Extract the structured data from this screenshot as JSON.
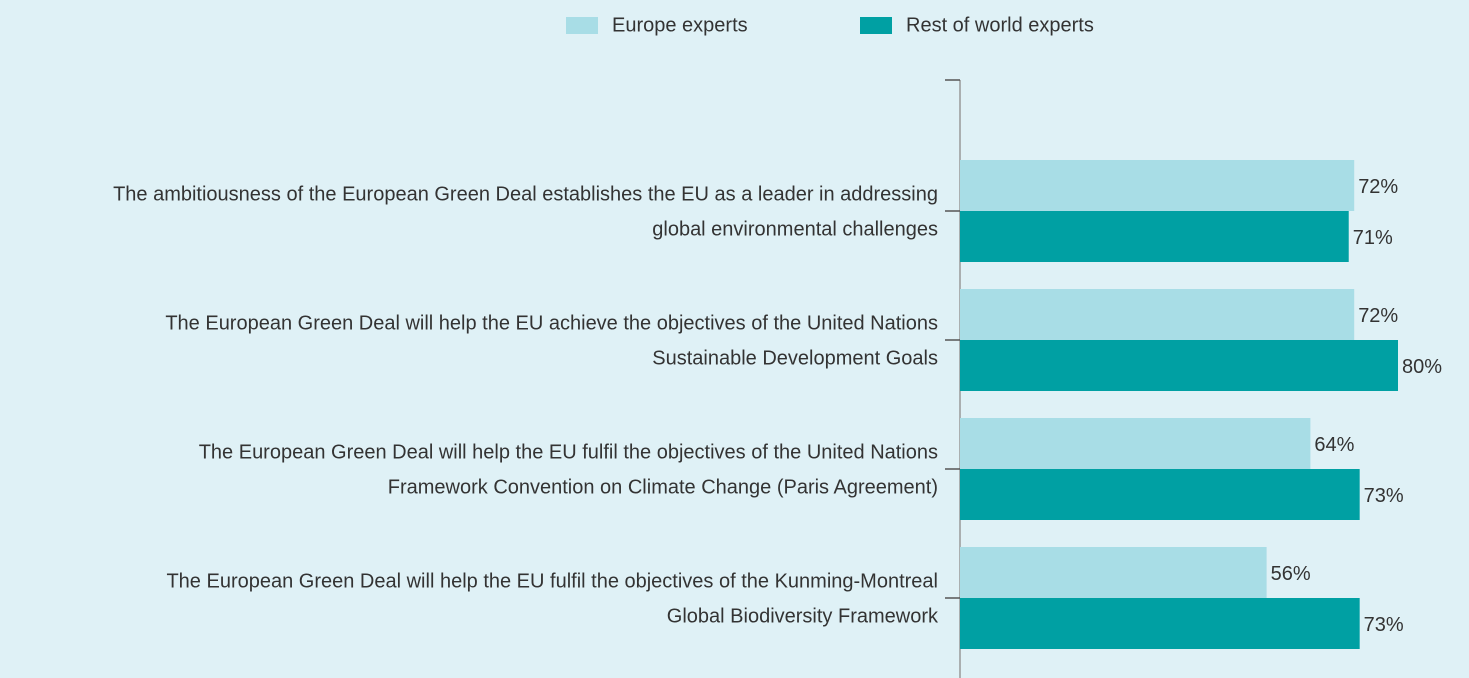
{
  "chart_data": {
    "type": "hbar",
    "categories": [
      [
        "The ambitiousness of the European Green Deal establishes the EU as a leader in addressing",
        "global environmental challenges"
      ],
      [
        "The European Green Deal will help the EU achieve the objectives of the United Nations",
        "Sustainable Development Goals"
      ],
      [
        "The European Green Deal will help the EU fulfil the objectives of the United Nations",
        "Framework Convention on Climate Change (Paris Agreement)"
      ],
      [
        "The European Green Deal will help the EU fulfil the objectives of the Kunming-Montreal",
        "Global Biodiversity Framework"
      ]
    ],
    "series": [
      {
        "name": "Europe experts",
        "color": "#a8dde6",
        "values": [
          72,
          72,
          64,
          56
        ],
        "value_labels": [
          "72%",
          "72%",
          "64%",
          "56%"
        ]
      },
      {
        "name": "Rest of world experts",
        "color": "#00a0a3",
        "values": [
          71,
          80,
          73,
          73
        ],
        "value_labels": [
          "71%",
          "80%",
          "73%",
          "73%"
        ]
      }
    ],
    "legend": "top"
  }
}
